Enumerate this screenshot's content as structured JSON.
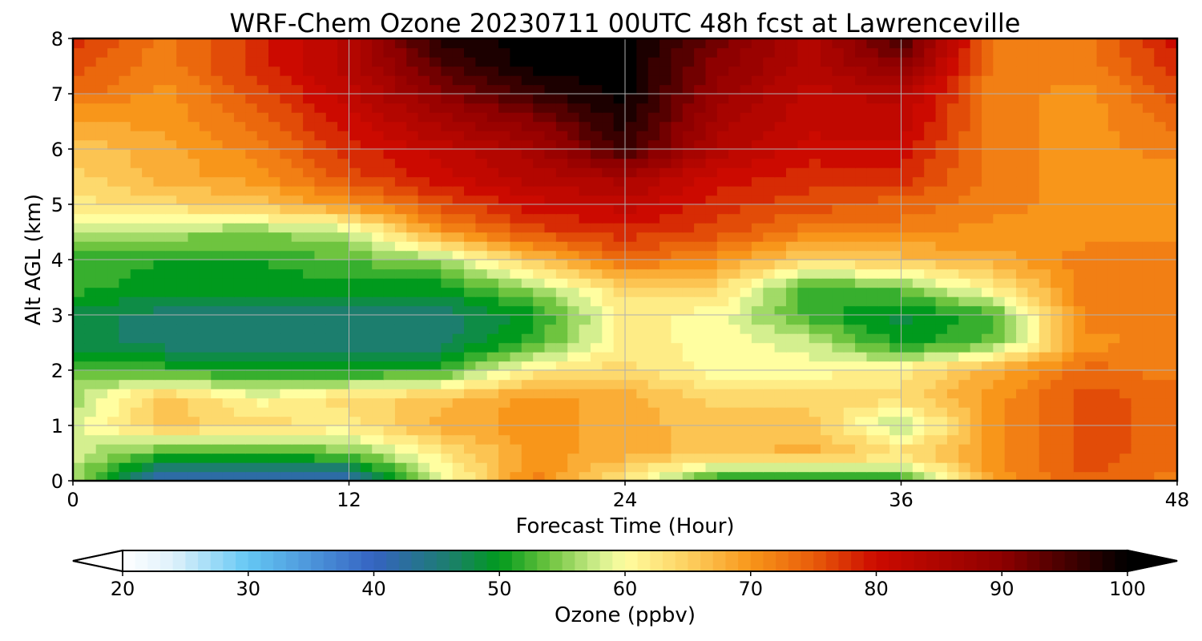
{
  "chart_data": {
    "type": "heatmap",
    "title": "WRF-Chem Ozone  20230711 00UTC 48h fcst at Lawrenceville",
    "xlabel": "Forecast Time (Hour)",
    "ylabel": "Alt AGL (km)",
    "xlim": [
      0,
      48
    ],
    "ylim": [
      0,
      8
    ],
    "xticks": [
      "0",
      "12",
      "24",
      "36",
      "48"
    ],
    "yticks": [
      "0",
      "1",
      "2",
      "3",
      "4",
      "5",
      "6",
      "7",
      "8"
    ],
    "grid": true,
    "z_x": [
      0,
      4,
      8,
      12,
      16,
      20,
      24,
      28,
      32,
      36,
      40,
      44,
      48
    ],
    "z_y": [
      0,
      0.5,
      1,
      1.5,
      2,
      2.5,
      3,
      3.5,
      4,
      4.5,
      5,
      5.5,
      6,
      6.5,
      7,
      7.5,
      8
    ],
    "z": [
      [
        56,
        40,
        40,
        40,
        58,
        72,
        62,
        50,
        50,
        50,
        70,
        75,
        72
      ],
      [
        58,
        52,
        52,
        54,
        62,
        70,
        68,
        66,
        68,
        64,
        70,
        76,
        74
      ],
      [
        58,
        66,
        64,
        62,
        68,
        70,
        68,
        66,
        66,
        56,
        70,
        76,
        74
      ],
      [
        56,
        66,
        60,
        64,
        66,
        70,
        68,
        64,
        64,
        64,
        70,
        76,
        74
      ],
      [
        54,
        52,
        50,
        50,
        52,
        62,
        64,
        60,
        60,
        62,
        68,
        74,
        72
      ],
      [
        48,
        46,
        45,
        46,
        46,
        52,
        62,
        60,
        58,
        50,
        54,
        70,
        72
      ],
      [
        48,
        46,
        46,
        46,
        46,
        50,
        62,
        60,
        52,
        48,
        52,
        72,
        72
      ],
      [
        52,
        50,
        50,
        50,
        50,
        56,
        64,
        64,
        52,
        54,
        62,
        72,
        72
      ],
      [
        52,
        51,
        51,
        53,
        56,
        66,
        74,
        70,
        64,
        66,
        68,
        72,
        72
      ],
      [
        56,
        56,
        55,
        57,
        70,
        76,
        78,
        76,
        72,
        72,
        70,
        70,
        70
      ],
      [
        62,
        64,
        66,
        70,
        76,
        80,
        82,
        78,
        76,
        74,
        72,
        70,
        70
      ],
      [
        64,
        68,
        70,
        76,
        80,
        84,
        86,
        80,
        78,
        78,
        72,
        70,
        70
      ],
      [
        66,
        68,
        72,
        78,
        82,
        86,
        96,
        84,
        80,
        80,
        72,
        70,
        72
      ],
      [
        68,
        70,
        74,
        80,
        86,
        90,
        98,
        86,
        82,
        82,
        72,
        70,
        74
      ],
      [
        74,
        70,
        76,
        82,
        90,
        96,
        100,
        88,
        82,
        84,
        72,
        70,
        76
      ],
      [
        76,
        72,
        78,
        84,
        94,
        100,
        100,
        90,
        84,
        90,
        72,
        72,
        78
      ],
      [
        78,
        72,
        78,
        84,
        98,
        100,
        100,
        92,
        84,
        96,
        72,
        72,
        80
      ]
    ],
    "colorbar": {
      "label": "Ozone  (ppbv)",
      "min": 20,
      "max": 100,
      "ticks": [
        "20",
        "30",
        "40",
        "50",
        "60",
        "70",
        "80",
        "90",
        "100"
      ],
      "extend": "both",
      "stops": [
        [
          20,
          "#ffffff"
        ],
        [
          24,
          "#dff1fb"
        ],
        [
          30,
          "#64c7f4"
        ],
        [
          40,
          "#3563c1"
        ],
        [
          46,
          "#1c7e6e"
        ],
        [
          50,
          "#009a1d"
        ],
        [
          54,
          "#6ec43f"
        ],
        [
          58,
          "#d4ef8f"
        ],
        [
          60,
          "#fffea0"
        ],
        [
          65,
          "#fdd060"
        ],
        [
          70,
          "#f8961a"
        ],
        [
          75,
          "#e85c0a"
        ],
        [
          80,
          "#cc0a00"
        ],
        [
          90,
          "#8e0000"
        ],
        [
          100,
          "#000000"
        ]
      ]
    }
  }
}
